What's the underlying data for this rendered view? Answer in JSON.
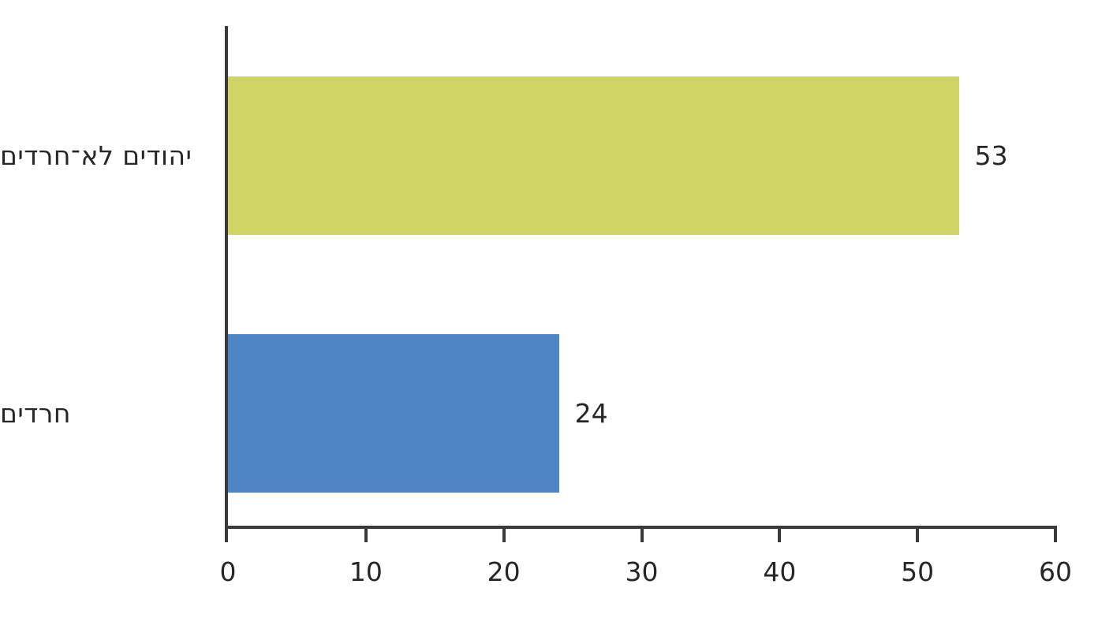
{
  "chart_data": {
    "type": "bar",
    "orientation": "horizontal",
    "title": "",
    "xlabel": "",
    "ylabel": "",
    "categories": [
      "יהודים לא־חרדים",
      "חרדים"
    ],
    "values": [
      53,
      24
    ],
    "value_labels": [
      "53",
      "24"
    ],
    "bar_colors": [
      "#d0d464",
      "#4e86c5"
    ],
    "xlim": [
      0,
      60
    ],
    "x_ticks": [
      "0",
      "10",
      "20",
      "30",
      "40",
      "50",
      "60"
    ],
    "grid": false,
    "legend": false,
    "axis_color": "#3a3a3a",
    "text_color": "#262626",
    "background_color": "#ffffff"
  }
}
